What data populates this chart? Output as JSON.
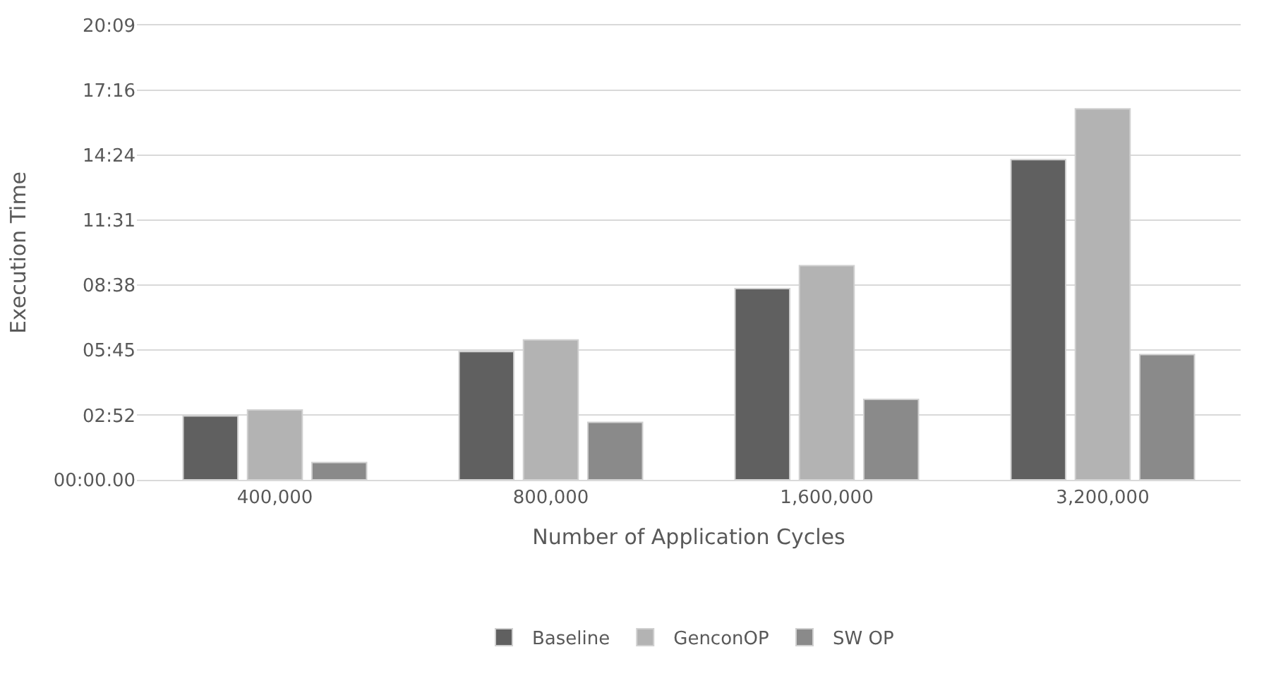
{
  "chart_data": {
    "type": "bar",
    "xlabel": "Number of Application Cycles",
    "ylabel": "Execution Time",
    "categories": [
      "400,000",
      "800,000",
      "1,600,000",
      "3,200,000"
    ],
    "series": [
      {
        "name": "Baseline",
        "color": "#606060",
        "values": [
          170,
          341,
          509,
          852
        ]
      },
      {
        "name": "GenconOP",
        "color": "#b3b3b3",
        "values": [
          186,
          372,
          570,
          987
        ]
      },
      {
        "name": "SW OP",
        "color": "#8a8a8a",
        "values": [
          46,
          153,
          214,
          333
        ]
      }
    ],
    "ylim": [
      0,
      1209
    ],
    "yticks": [
      {
        "value": 0,
        "label": "00:00.00"
      },
      {
        "value": 172,
        "label": "02:52"
      },
      {
        "value": 345,
        "label": "05:45"
      },
      {
        "value": 518,
        "label": "08:38"
      },
      {
        "value": 691,
        "label": "11:31"
      },
      {
        "value": 864,
        "label": "14:24"
      },
      {
        "value": 1036,
        "label": "17:16"
      },
      {
        "value": 1209,
        "label": "20:09"
      }
    ],
    "grid": "y",
    "legend": "bottom"
  }
}
